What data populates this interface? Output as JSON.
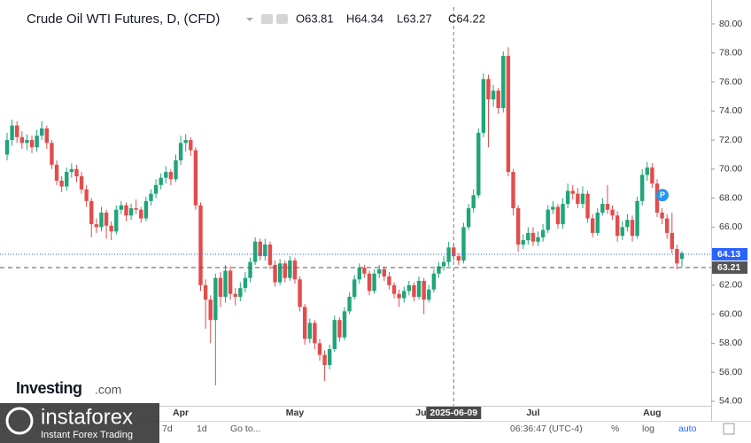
{
  "chart_data": {
    "type": "candlestick",
    "title": "Crude Oil WTI Futures, D, (CFD)",
    "header_values": [
      "O63.81",
      "H64.34",
      "L63.27",
      "C64.22"
    ],
    "up_color": "#1fa57a",
    "down_color": "#e34c4c",
    "ylim": [
      53.69,
      81.16
    ],
    "yticks": [
      {
        "value": 54,
        "label": "54.00"
      },
      {
        "value": 56,
        "label": "56.00"
      },
      {
        "value": 58,
        "label": "58.00"
      },
      {
        "value": 60,
        "label": "60.00"
      },
      {
        "value": 62,
        "label": "62.00"
      },
      {
        "value": 64,
        "label": "64.00"
      },
      {
        "value": 66,
        "label": "66.00"
      },
      {
        "value": 68,
        "label": "68.00"
      },
      {
        "value": 70,
        "label": "70.00"
      },
      {
        "value": 72,
        "label": "72.00"
      },
      {
        "value": 74,
        "label": "74.00"
      },
      {
        "value": 76,
        "label": "76.00"
      },
      {
        "value": 78,
        "label": "78.00"
      },
      {
        "value": 80,
        "label": "80.00"
      }
    ],
    "categories": [
      null,
      null,
      null,
      null,
      null,
      null,
      null,
      null,
      null,
      null,
      null,
      null,
      null,
      null,
      null,
      null,
      null,
      null,
      null,
      null,
      null,
      null,
      null,
      null,
      null,
      null,
      null,
      null,
      null,
      null,
      null,
      null,
      null,
      null,
      null,
      "Apr",
      null,
      null,
      null,
      null,
      null,
      null,
      null,
      null,
      null,
      null,
      null,
      null,
      null,
      null,
      null,
      null,
      null,
      null,
      null,
      null,
      null,
      null,
      "May",
      null,
      null,
      null,
      null,
      null,
      null,
      null,
      null,
      null,
      null,
      null,
      null,
      null,
      null,
      null,
      null,
      null,
      null,
      null,
      null,
      null,
      null,
      null,
      null,
      null,
      "Jun",
      null,
      null,
      null,
      null,
      null,
      null,
      null,
      null,
      null,
      null,
      null,
      null,
      null,
      null,
      null,
      null,
      null,
      null,
      null,
      null,
      null,
      "Jul",
      null,
      null,
      null,
      null,
      null,
      null,
      null,
      null,
      null,
      null,
      null,
      null,
      null,
      null,
      null,
      null,
      null,
      null,
      null,
      null,
      null,
      null,
      null,
      "Aug",
      null,
      null,
      null,
      null,
      null,
      null
    ],
    "ohlc": [
      [
        71.0,
        72.5,
        70.6,
        72.0
      ],
      [
        72.0,
        73.4,
        71.6,
        73.0
      ],
      [
        73.0,
        73.3,
        71.8,
        72.2
      ],
      [
        72.2,
        72.6,
        71.4,
        71.8
      ],
      [
        71.8,
        72.4,
        71.3,
        72.0
      ],
      [
        72.0,
        72.3,
        71.1,
        71.5
      ],
      [
        71.5,
        72.7,
        71.2,
        72.3
      ],
      [
        72.3,
        73.3,
        72.0,
        72.8
      ],
      [
        72.8,
        73.0,
        71.4,
        71.8
      ],
      [
        71.8,
        72.0,
        70.0,
        70.3
      ],
      [
        70.3,
        70.6,
        68.9,
        69.2
      ],
      [
        69.2,
        69.5,
        68.4,
        68.8
      ],
      [
        68.8,
        70.1,
        68.5,
        69.8
      ],
      [
        69.8,
        70.4,
        69.4,
        70.0
      ],
      [
        70.0,
        70.3,
        69.1,
        69.5
      ],
      [
        69.5,
        69.8,
        68.3,
        68.6
      ],
      [
        68.6,
        68.9,
        67.4,
        67.8
      ],
      [
        67.8,
        68.0,
        65.3,
        66.2
      ],
      [
        66.2,
        66.6,
        65.6,
        66.0
      ],
      [
        66.0,
        67.4,
        65.7,
        67.0
      ],
      [
        67.0,
        67.2,
        65.2,
        66.1
      ],
      [
        66.1,
        66.4,
        65.1,
        65.7
      ],
      [
        65.7,
        67.5,
        65.5,
        67.2
      ],
      [
        67.2,
        67.8,
        66.9,
        67.5
      ],
      [
        67.5,
        67.7,
        66.4,
        66.8
      ],
      [
        66.8,
        67.6,
        66.5,
        67.3
      ],
      [
        67.3,
        67.9,
        66.9,
        67.2
      ],
      [
        67.2,
        67.4,
        66.3,
        66.6
      ],
      [
        66.6,
        68.1,
        66.4,
        67.8
      ],
      [
        67.8,
        68.6,
        67.5,
        68.3
      ],
      [
        68.3,
        69.3,
        68.0,
        68.9
      ],
      [
        68.9,
        69.7,
        68.6,
        69.4
      ],
      [
        69.4,
        70.2,
        69.0,
        69.8
      ],
      [
        69.8,
        70.0,
        68.9,
        69.3
      ],
      [
        69.3,
        71.0,
        69.1,
        70.6
      ],
      [
        70.6,
        72.3,
        70.3,
        71.8
      ],
      [
        71.8,
        72.4,
        71.2,
        72.0
      ],
      [
        72.0,
        72.2,
        70.9,
        71.3
      ],
      [
        71.3,
        71.5,
        67.2,
        67.5
      ],
      [
        67.5,
        67.7,
        61.6,
        62.0
      ],
      [
        62.0,
        62.4,
        59.0,
        61.0
      ],
      [
        61.0,
        61.3,
        58.0,
        59.6
      ],
      [
        59.6,
        62.8,
        55.1,
        62.5
      ],
      [
        62.5,
        62.9,
        60.5,
        61.2
      ],
      [
        61.2,
        63.4,
        60.8,
        63.0
      ],
      [
        63.0,
        63.3,
        61.0,
        61.4
      ],
      [
        61.4,
        61.8,
        60.6,
        61.2
      ],
      [
        61.2,
        62.2,
        60.9,
        61.8
      ],
      [
        61.8,
        62.9,
        61.5,
        62.5
      ],
      [
        62.5,
        63.9,
        62.2,
        63.6
      ],
      [
        63.6,
        65.3,
        63.4,
        65.0
      ],
      [
        65.0,
        65.2,
        63.7,
        64.0
      ],
      [
        64.0,
        65.2,
        63.7,
        64.8
      ],
      [
        64.8,
        65.0,
        63.1,
        63.4
      ],
      [
        63.4,
        63.7,
        61.9,
        62.2
      ],
      [
        62.2,
        63.8,
        62.0,
        63.5
      ],
      [
        63.5,
        63.7,
        62.2,
        62.5
      ],
      [
        62.5,
        64.0,
        62.3,
        63.7
      ],
      [
        63.7,
        63.9,
        62.1,
        62.4
      ],
      [
        62.4,
        62.6,
        60.2,
        60.5
      ],
      [
        60.5,
        60.7,
        57.9,
        58.3
      ],
      [
        58.3,
        59.7,
        58.0,
        59.4
      ],
      [
        59.4,
        59.6,
        57.6,
        58.0
      ],
      [
        58.0,
        58.3,
        56.8,
        57.2
      ],
      [
        57.2,
        57.5,
        55.4,
        56.5
      ],
      [
        56.5,
        57.9,
        56.2,
        57.6
      ],
      [
        57.6,
        59.9,
        57.4,
        59.6
      ],
      [
        59.6,
        59.8,
        58.1,
        58.4
      ],
      [
        58.4,
        60.5,
        58.2,
        60.2
      ],
      [
        60.2,
        61.5,
        60.0,
        61.2
      ],
      [
        61.2,
        62.7,
        61.0,
        62.4
      ],
      [
        62.4,
        63.5,
        62.1,
        63.2
      ],
      [
        63.2,
        63.4,
        62.5,
        62.8
      ],
      [
        62.8,
        63.0,
        61.3,
        61.6
      ],
      [
        61.6,
        63.1,
        61.4,
        62.8
      ],
      [
        62.8,
        63.4,
        62.5,
        63.1
      ],
      [
        63.1,
        63.3,
        62.3,
        62.6
      ],
      [
        62.6,
        62.9,
        61.7,
        62.0
      ],
      [
        62.0,
        62.2,
        61.1,
        61.4
      ],
      [
        61.4,
        61.7,
        60.5,
        61.1
      ],
      [
        61.1,
        61.9,
        60.8,
        61.6
      ],
      [
        61.6,
        62.3,
        61.3,
        62.0
      ],
      [
        62.0,
        62.2,
        60.9,
        61.2
      ],
      [
        61.2,
        62.6,
        61.0,
        62.3
      ],
      [
        62.3,
        62.5,
        60.0,
        61.0
      ],
      [
        61.0,
        62.0,
        60.8,
        61.7
      ],
      [
        61.7,
        63.1,
        61.5,
        62.8
      ],
      [
        62.8,
        63.6,
        62.5,
        63.3
      ],
      [
        63.3,
        64.0,
        63.0,
        63.6
      ],
      [
        63.6,
        65.0,
        63.3,
        64.6
      ],
      [
        64.6,
        64.9,
        63.7,
        64.0
      ],
      [
        64.0,
        64.2,
        63.4,
        63.7
      ],
      [
        63.7,
        66.3,
        63.5,
        66.0
      ],
      [
        66.0,
        67.6,
        65.8,
        67.3
      ],
      [
        67.3,
        68.6,
        67.0,
        68.2
      ],
      [
        68.2,
        72.8,
        68.0,
        72.5
      ],
      [
        72.5,
        76.6,
        72.2,
        76.2
      ],
      [
        76.2,
        76.5,
        71.5,
        74.8
      ],
      [
        74.8,
        75.8,
        74.3,
        75.4
      ],
      [
        75.4,
        75.6,
        73.8,
        74.2
      ],
      [
        74.2,
        78.1,
        73.9,
        77.8
      ],
      [
        77.8,
        78.4,
        69.5,
        69.8
      ],
      [
        69.8,
        70.0,
        66.8,
        67.3
      ],
      [
        67.3,
        67.5,
        64.3,
        64.8
      ],
      [
        64.8,
        65.5,
        64.5,
        65.1
      ],
      [
        65.1,
        66.0,
        64.8,
        65.6
      ],
      [
        65.6,
        66.0,
        64.7,
        65.0
      ],
      [
        65.0,
        65.7,
        64.7,
        65.3
      ],
      [
        65.3,
        66.2,
        65.0,
        65.8
      ],
      [
        65.8,
        67.5,
        65.6,
        67.2
      ],
      [
        67.2,
        67.8,
        66.9,
        67.4
      ],
      [
        67.4,
        67.6,
        65.9,
        66.2
      ],
      [
        66.2,
        68.0,
        65.9,
        67.6
      ],
      [
        67.6,
        69.0,
        67.3,
        68.5
      ],
      [
        68.5,
        68.9,
        67.9,
        68.3
      ],
      [
        68.3,
        68.7,
        67.3,
        67.6
      ],
      [
        67.6,
        68.8,
        67.3,
        68.3
      ],
      [
        68.3,
        68.5,
        66.3,
        66.6
      ],
      [
        66.6,
        66.9,
        65.3,
        65.6
      ],
      [
        65.6,
        67.3,
        65.4,
        67.0
      ],
      [
        67.0,
        68.0,
        66.8,
        67.6
      ],
      [
        67.6,
        68.9,
        66.9,
        67.2
      ],
      [
        67.2,
        67.5,
        66.5,
        66.8
      ],
      [
        66.8,
        67.1,
        65.0,
        65.4
      ],
      [
        65.4,
        66.4,
        65.1,
        66.0
      ],
      [
        66.0,
        66.9,
        65.7,
        66.5
      ],
      [
        66.5,
        66.8,
        65.0,
        65.4
      ],
      [
        65.4,
        68.1,
        65.2,
        67.8
      ],
      [
        67.8,
        70.0,
        67.5,
        69.6
      ],
      [
        69.6,
        70.5,
        69.2,
        70.1
      ],
      [
        70.1,
        70.4,
        68.7,
        69.0
      ],
      [
        69.0,
        69.3,
        66.7,
        67.0
      ],
      [
        67.0,
        67.3,
        66.2,
        66.6
      ],
      [
        66.6,
        66.9,
        65.2,
        65.6
      ],
      [
        65.6,
        67.0,
        64.2,
        64.5
      ],
      [
        64.5,
        64.8,
        63.1,
        63.5
      ],
      [
        63.81,
        64.34,
        63.27,
        64.22
      ]
    ],
    "price_lines": [
      {
        "value": 64.13,
        "color": "#2962ff",
        "style": "dotted"
      },
      {
        "value": 63.21,
        "color": "#555555",
        "style": "dashed"
      }
    ],
    "crosshair": {
      "index": 90,
      "label": "2025-06-09"
    },
    "events": [
      {
        "index": 131,
        "label": "P"
      }
    ]
  },
  "ui": {
    "toolbar": [
      "7d",
      "1d",
      "Go to...",
      "06:36:47 (UTC-4)",
      "%",
      "log",
      "auto"
    ],
    "investing_logo": "Investing",
    "investing_suffix": ".com",
    "instaforex_logo": "instaforex",
    "instaforex_tagline": "Instant Forex Trading"
  }
}
